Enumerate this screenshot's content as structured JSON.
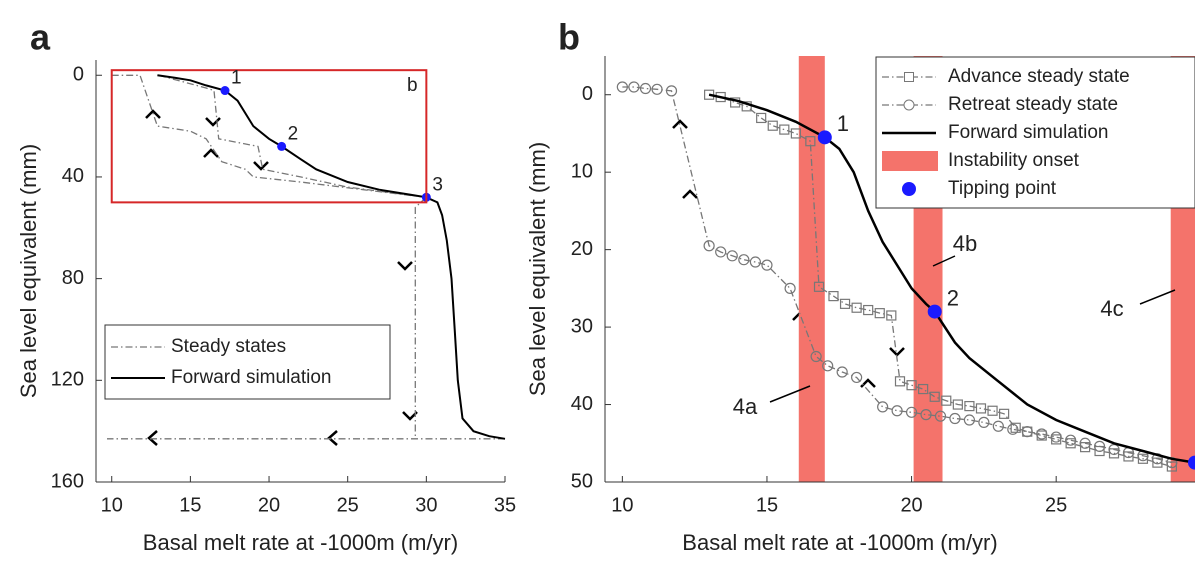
{
  "chart_data": [
    {
      "type": "line",
      "panel": "a",
      "xlabel": "Basal melt rate at -1000m (m/yr)",
      "ylabel": "Sea level equivalent (mm)",
      "xlim": [
        9,
        35
      ],
      "ylim": [
        -6,
        160
      ],
      "y_direction": "reverse",
      "xticks": [
        10,
        15,
        20,
        25,
        30,
        35
      ],
      "yticks": [
        0,
        40,
        80,
        120,
        160
      ],
      "legend": "lower left",
      "series": [
        {
          "name": "Steady states",
          "color": "#777777",
          "style": "dash-dot",
          "x": [
            10,
            11.8,
            12.9,
            15,
            16,
            17,
            18.5,
            19,
            22,
            26,
            30,
            null,
            13,
            16,
            16.5,
            16.8,
            19.3,
            19.6,
            22,
            25,
            30,
            null,
            30,
            29.3,
            29.3,
            null,
            35,
            9.7
          ],
          "values": [
            0,
            0,
            20,
            22,
            25,
            34,
            37,
            40,
            42,
            45,
            48,
            null,
            0,
            5,
            6,
            25,
            28,
            37,
            40,
            44,
            48,
            null,
            48,
            52,
            143,
            null,
            143,
            143
          ]
        },
        {
          "name": "Forward simulation",
          "color": "#000000",
          "style": "solid",
          "x": [
            12.9,
            14,
            15,
            16,
            17.2,
            18,
            19,
            20,
            20.8,
            22,
            23,
            25,
            27,
            29,
            30,
            30.7,
            31,
            31.3,
            31.6,
            31.8,
            32,
            32.3,
            33,
            34,
            35
          ],
          "values": [
            0,
            1,
            2,
            4,
            6,
            10,
            20,
            25,
            28,
            33,
            37,
            42,
            45,
            47,
            48,
            50,
            55,
            65,
            80,
            100,
            120,
            135,
            140,
            142,
            143
          ]
        }
      ],
      "tipping_points": {
        "color": "#1a1aff",
        "x": [
          17.2,
          20.8,
          30
        ],
        "values": [
          6,
          28,
          48
        ],
        "labels": [
          "1",
          "2",
          "3"
        ]
      },
      "zoom_box": {
        "color": "#d62728",
        "xlim": [
          10,
          30
        ],
        "ylim": [
          -2,
          50
        ],
        "label": "b"
      }
    },
    {
      "type": "line",
      "panel": "b",
      "xlabel": "Basal melt rate at -1000m (m/yr)",
      "ylabel": "Sea level equivalent (mm)",
      "xlim": [
        9.4,
        29.8
      ],
      "ylim": [
        -5,
        50
      ],
      "y_direction": "reverse",
      "xticks": [
        10,
        15,
        20,
        25
      ],
      "yticks": [
        0,
        10,
        20,
        30,
        40,
        50
      ],
      "legend": "upper right",
      "series": [
        {
          "name": "Advance steady state",
          "color": "#777777",
          "style": "dash-dot",
          "marker": "square",
          "x": [
            13,
            13.4,
            13.9,
            14.3,
            14.8,
            15.2,
            15.6,
            16,
            16.5,
            16.8,
            17.3,
            17.7,
            18.1,
            18.5,
            18.9,
            19.3,
            19.6,
            20,
            20.4,
            20.8,
            21.2,
            21.6,
            22,
            22.4,
            22.8,
            23.2,
            23.6,
            24,
            24.5,
            25,
            25.5,
            26,
            26.5,
            27,
            27.5,
            28,
            28.5,
            29
          ],
          "values": [
            0,
            0.3,
            1,
            1.5,
            3,
            4,
            4.5,
            5,
            6,
            24.8,
            26,
            27,
            27.5,
            27.8,
            28.2,
            28.5,
            37,
            37.5,
            38,
            39,
            39.5,
            40,
            40.2,
            40.5,
            40.8,
            41.2,
            43,
            43.5,
            44,
            44.5,
            45,
            45.5,
            46,
            46.3,
            46.7,
            47,
            47.5,
            48
          ]
        },
        {
          "name": "Retreat steady state",
          "color": "#777777",
          "style": "dash-dot",
          "marker": "circle",
          "x": [
            10,
            10.4,
            10.8,
            11.2,
            11.7,
            13,
            13.4,
            13.8,
            14.2,
            14.6,
            15,
            15.8,
            16.7,
            17.1,
            17.6,
            18.1,
            19,
            19.5,
            20,
            20.5,
            21,
            21.5,
            22,
            22.5,
            23,
            23.5,
            24,
            24.5,
            25,
            25.5,
            26,
            26.5,
            27,
            27.5,
            28,
            28.5,
            29
          ],
          "values": [
            -1,
            -1,
            -0.8,
            -0.7,
            -0.5,
            19.5,
            20.3,
            20.8,
            21.3,
            21.6,
            22,
            25,
            33.8,
            35,
            35.8,
            36.5,
            40.3,
            40.8,
            41,
            41.3,
            41.5,
            41.8,
            42,
            42.3,
            42.8,
            43.2,
            43.5,
            43.8,
            44.2,
            44.6,
            45,
            45.4,
            45.8,
            46.2,
            46.6,
            47,
            47.5
          ]
        },
        {
          "name": "Forward simulation",
          "color": "#000000",
          "style": "solid",
          "x": [
            13,
            14,
            15,
            16,
            17,
            17.5,
            18,
            18.5,
            19,
            19.5,
            20,
            20.5,
            20.8,
            21.5,
            22,
            23,
            24,
            25,
            26,
            27,
            28,
            29,
            29.8
          ],
          "values": [
            0,
            0.8,
            2,
            3.5,
            5.5,
            7,
            10,
            15,
            19,
            22,
            25,
            27,
            28,
            32,
            34,
            37,
            40,
            42,
            43.5,
            45,
            46,
            47,
            47.5
          ]
        }
      ],
      "bands": {
        "name": "Instability onset",
        "color": "#f4736b",
        "x": [
          [
            16.1,
            17.0
          ],
          [
            20.07,
            21.07
          ],
          [
            28.96,
            29.8
          ]
        ],
        "labels": [
          "4a",
          "4b",
          "4c"
        ]
      },
      "tipping_points": {
        "name": "Tipping point",
        "color": "#1a1aff",
        "x": [
          17,
          20.8,
          29.8
        ],
        "values": [
          5.5,
          28,
          47.5
        ],
        "labels": [
          "1",
          "2",
          null
        ]
      }
    }
  ]
}
